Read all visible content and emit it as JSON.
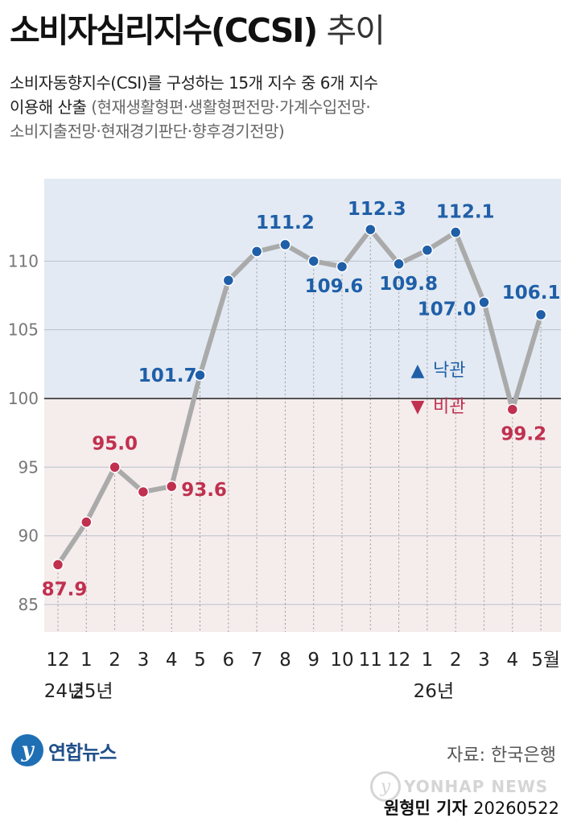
{
  "header": {
    "title_main": "소비자심리지수(CCSI)",
    "title_sub": "추이",
    "desc_line1": "소비자동향지수(CSI)를 구성하는 15개 지수 중 6개 지수",
    "desc_line2_main": "이용해 산출",
    "desc_line2_paren": "(현재생활형편·생활형편전망·가계수입전망·",
    "desc_line3_paren": "소비지출전망·현재경기판단·향후경기전망)"
  },
  "colors": {
    "optimism": "#1f5fa8",
    "pessimism": "#c0304f",
    "line": "#aaaaaa",
    "band_top": "#e3eaf3",
    "band_bottom": "#f5ecec"
  },
  "chart_data": {
    "type": "line",
    "x": [
      "12",
      "1",
      "2",
      "3",
      "4",
      "5",
      "6",
      "7",
      "8",
      "9",
      "10",
      "11",
      "12",
      "1",
      "2",
      "3",
      "4",
      "5월"
    ],
    "year_labels": [
      {
        "at": 0,
        "text": "24년"
      },
      {
        "at": 1,
        "text": "25년"
      },
      {
        "at": 13,
        "text": "26년"
      }
    ],
    "values": [
      87.9,
      91.0,
      95.0,
      93.2,
      93.6,
      101.7,
      108.6,
      110.7,
      111.2,
      110.0,
      109.6,
      112.3,
      109.8,
      110.8,
      112.1,
      107.0,
      99.2,
      106.1
    ],
    "data_labels": [
      {
        "index": 0,
        "text": "87.9"
      },
      {
        "index": 2,
        "text": "95.0"
      },
      {
        "index": 4,
        "text": "93.6"
      },
      {
        "index": 5,
        "text": "101.7"
      },
      {
        "index": 8,
        "text": "111.2"
      },
      {
        "index": 10,
        "text": "109.6"
      },
      {
        "index": 11,
        "text": "112.3"
      },
      {
        "index": 12,
        "text": "109.8"
      },
      {
        "index": 14,
        "text": "112.1"
      },
      {
        "index": 15,
        "text": "107.0"
      },
      {
        "index": 16,
        "text": "99.2"
      },
      {
        "index": 17,
        "text": "106.1"
      }
    ],
    "y_ticks": [
      85,
      90,
      95,
      100,
      105,
      110
    ],
    "ylim": [
      83,
      116
    ],
    "baseline": 100,
    "legend": [
      {
        "symbol": "▲",
        "label": "낙관"
      },
      {
        "symbol": "▼",
        "label": "비관"
      }
    ],
    "grid": true
  },
  "footer": {
    "brand": "연합뉴스",
    "source": "자료: 한국은행",
    "watermark": "YONHAP NEWS",
    "reporter": "원형민 기자",
    "date": "20260522"
  }
}
